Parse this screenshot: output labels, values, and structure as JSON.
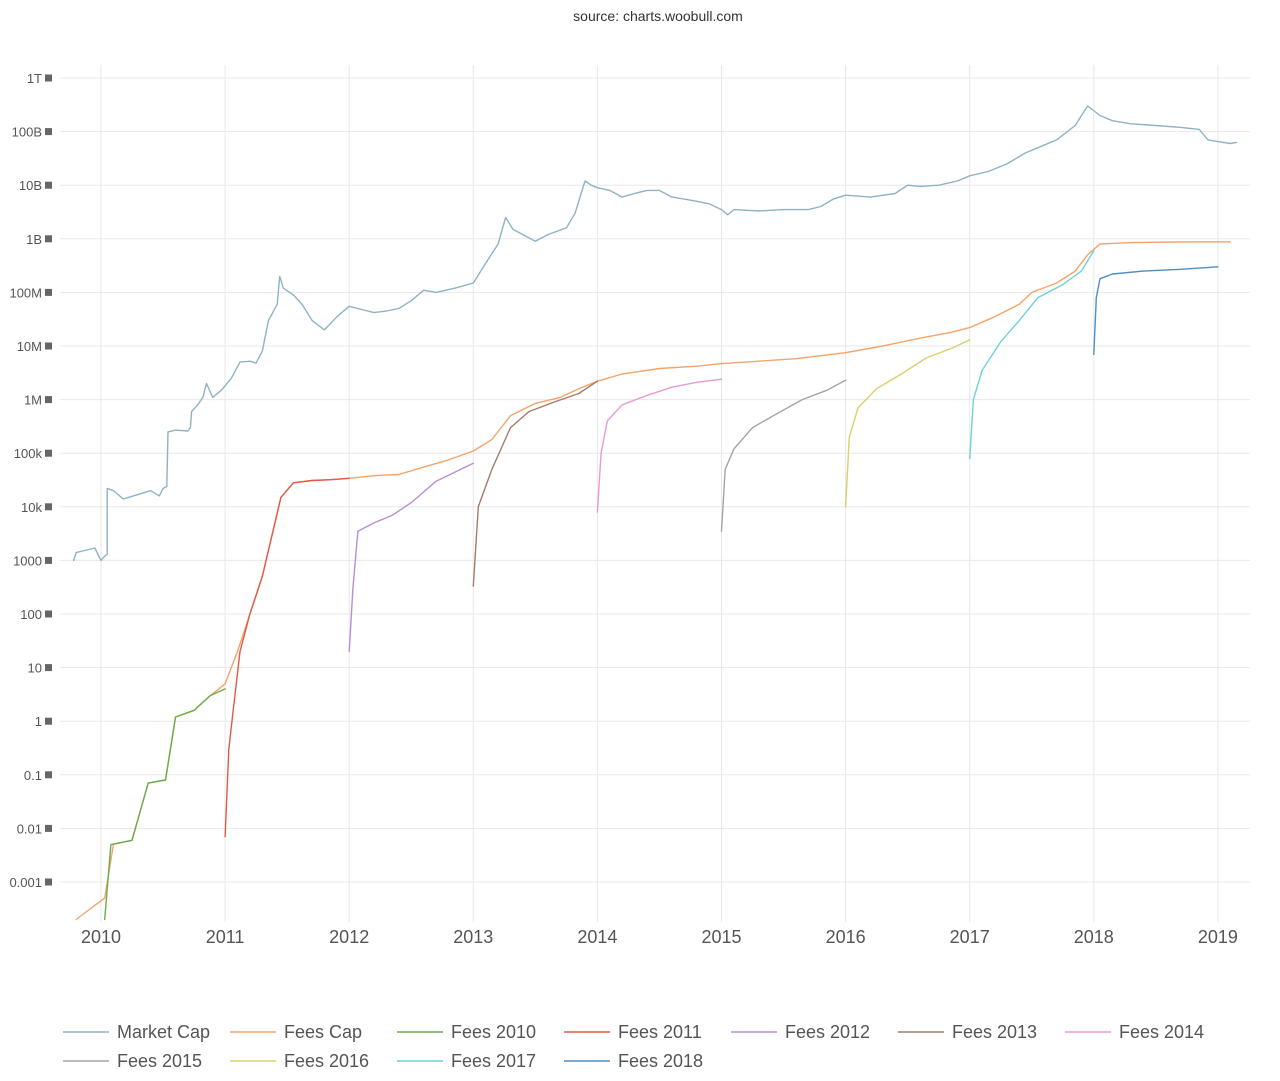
{
  "source": "source: charts.woobull.com",
  "chart_data": {
    "type": "line",
    "title": "",
    "xlabel": "",
    "ylabel": "",
    "y_scale": "log",
    "ylim": [
      0.0002,
      1000000000000
    ],
    "xlim": [
      2009.8,
      2019.2
    ],
    "grid": true,
    "legend_position": "bottom",
    "x_ticks": [
      "2010",
      "2011",
      "2012",
      "2013",
      "2014",
      "2015",
      "2016",
      "2017",
      "2018",
      "2019"
    ],
    "y_ticks": [
      {
        "label": "1T",
        "value": 1000000000000
      },
      {
        "label": "100B",
        "value": 100000000000
      },
      {
        "label": "10B",
        "value": 10000000000
      },
      {
        "label": "1B",
        "value": 1000000000
      },
      {
        "label": "100M",
        "value": 100000000
      },
      {
        "label": "10M",
        "value": 10000000
      },
      {
        "label": "1M",
        "value": 1000000
      },
      {
        "label": "100k",
        "value": 100000
      },
      {
        "label": "10k",
        "value": 10000
      },
      {
        "label": "1000",
        "value": 1000
      },
      {
        "label": "100",
        "value": 100
      },
      {
        "label": "10",
        "value": 10
      },
      {
        "label": "1",
        "value": 1
      },
      {
        "label": "0.1",
        "value": 0.1
      },
      {
        "label": "0.01",
        "value": 0.01
      },
      {
        "label": "0.001",
        "value": 0.001
      }
    ],
    "series": [
      {
        "name": "Market Cap",
        "color": "#8fb3c4",
        "points": [
          [
            2009.78,
            1000
          ],
          [
            2009.8,
            1400
          ],
          [
            2009.9,
            1600
          ],
          [
            2009.95,
            1700
          ],
          [
            2010.0,
            1000
          ],
          [
            2010.03,
            1200
          ],
          [
            2010.05,
            1300
          ],
          [
            2010.05,
            22000
          ],
          [
            2010.1,
            20000
          ],
          [
            2010.18,
            14000
          ],
          [
            2010.3,
            17000
          ],
          [
            2010.4,
            20000
          ],
          [
            2010.47,
            16000
          ],
          [
            2010.5,
            22000
          ],
          [
            2010.53,
            24000
          ],
          [
            2010.54,
            250000
          ],
          [
            2010.6,
            270000
          ],
          [
            2010.7,
            260000
          ],
          [
            2010.72,
            300000
          ],
          [
            2010.73,
            600000
          ],
          [
            2010.78,
            800000
          ],
          [
            2010.82,
            1100000
          ],
          [
            2010.85,
            2000000
          ],
          [
            2010.9,
            1100000
          ],
          [
            2010.97,
            1500000
          ],
          [
            2011.05,
            2500000
          ],
          [
            2011.12,
            5000000
          ],
          [
            2011.2,
            5200000
          ],
          [
            2011.25,
            4800000
          ],
          [
            2011.3,
            8000000
          ],
          [
            2011.35,
            30000000
          ],
          [
            2011.42,
            60000000
          ],
          [
            2011.44,
            200000000
          ],
          [
            2011.47,
            120000000
          ],
          [
            2011.55,
            90000000
          ],
          [
            2011.62,
            60000000
          ],
          [
            2011.7,
            30000000
          ],
          [
            2011.8,
            20000000
          ],
          [
            2011.9,
            35000000
          ],
          [
            2012.0,
            55000000
          ],
          [
            2012.1,
            48000000
          ],
          [
            2012.2,
            42000000
          ],
          [
            2012.3,
            45000000
          ],
          [
            2012.4,
            50000000
          ],
          [
            2012.5,
            70000000
          ],
          [
            2012.6,
            110000000
          ],
          [
            2012.7,
            100000000
          ],
          [
            2012.85,
            120000000
          ],
          [
            2013.0,
            150000000
          ],
          [
            2013.1,
            350000000
          ],
          [
            2013.2,
            800000000
          ],
          [
            2013.26,
            2500000000
          ],
          [
            2013.32,
            1500000000
          ],
          [
            2013.4,
            1200000000
          ],
          [
            2013.5,
            900000000
          ],
          [
            2013.6,
            1200000000
          ],
          [
            2013.75,
            1600000000
          ],
          [
            2013.82,
            3000000000
          ],
          [
            2013.9,
            12000000000
          ],
          [
            2013.95,
            10000000000
          ],
          [
            2014.0,
            9000000000
          ],
          [
            2014.1,
            8000000000
          ],
          [
            2014.2,
            6000000000
          ],
          [
            2014.3,
            7000000000
          ],
          [
            2014.4,
            8000000000
          ],
          [
            2014.5,
            8000000000
          ],
          [
            2014.6,
            6000000000
          ],
          [
            2014.7,
            5500000000
          ],
          [
            2014.8,
            5000000000
          ],
          [
            2014.9,
            4500000000
          ],
          [
            2015.0,
            3500000000
          ],
          [
            2015.05,
            2800000000
          ],
          [
            2015.1,
            3500000000
          ],
          [
            2015.3,
            3300000000
          ],
          [
            2015.5,
            3500000000
          ],
          [
            2015.7,
            3500000000
          ],
          [
            2015.8,
            4000000000
          ],
          [
            2015.9,
            5500000000
          ],
          [
            2016.0,
            6500000000
          ],
          [
            2016.2,
            6000000000
          ],
          [
            2016.4,
            7000000000
          ],
          [
            2016.5,
            10000000000
          ],
          [
            2016.6,
            9500000000
          ],
          [
            2016.75,
            10000000000
          ],
          [
            2016.9,
            12000000000
          ],
          [
            2017.0,
            15000000000
          ],
          [
            2017.15,
            18000000000
          ],
          [
            2017.3,
            25000000000
          ],
          [
            2017.45,
            40000000000
          ],
          [
            2017.55,
            50000000000
          ],
          [
            2017.7,
            70000000000
          ],
          [
            2017.85,
            130000000000
          ],
          [
            2017.95,
            300000000000
          ],
          [
            2018.05,
            200000000000
          ],
          [
            2018.15,
            160000000000
          ],
          [
            2018.3,
            140000000000
          ],
          [
            2018.5,
            130000000000
          ],
          [
            2018.7,
            120000000000
          ],
          [
            2018.85,
            110000000000
          ],
          [
            2018.92,
            70000000000
          ],
          [
            2019.0,
            65000000000
          ],
          [
            2019.1,
            60000000000
          ],
          [
            2019.15,
            63000000000
          ]
        ]
      },
      {
        "name": "Fees Cap",
        "color": "#f4a46a",
        "points": [
          [
            2009.8,
            0.0002
          ],
          [
            2009.9,
            0.0003
          ],
          [
            2010.03,
            0.0005
          ],
          [
            2010.1,
            0.005
          ],
          [
            2010.25,
            0.006
          ],
          [
            2010.38,
            0.07
          ],
          [
            2010.52,
            0.08
          ],
          [
            2010.6,
            1.2
          ],
          [
            2010.75,
            1.6
          ],
          [
            2010.88,
            3
          ],
          [
            2010.95,
            4
          ],
          [
            2011.0,
            5
          ],
          [
            2011.1,
            20
          ],
          [
            2011.2,
            100
          ],
          [
            2011.3,
            500
          ],
          [
            2011.45,
            15000
          ],
          [
            2011.55,
            28000
          ],
          [
            2011.7,
            31000
          ],
          [
            2011.85,
            32000
          ],
          [
            2012.0,
            34000
          ],
          [
            2012.2,
            38000
          ],
          [
            2012.4,
            40000
          ],
          [
            2012.6,
            55000
          ],
          [
            2012.8,
            75000
          ],
          [
            2013.0,
            110000
          ],
          [
            2013.15,
            180000
          ],
          [
            2013.3,
            500000
          ],
          [
            2013.5,
            850000
          ],
          [
            2013.7,
            1100000
          ],
          [
            2013.85,
            1600000
          ],
          [
            2014.0,
            2200000
          ],
          [
            2014.2,
            3000000
          ],
          [
            2014.5,
            3800000
          ],
          [
            2014.8,
            4200000
          ],
          [
            2015.0,
            4700000
          ],
          [
            2015.3,
            5200000
          ],
          [
            2015.6,
            5800000
          ],
          [
            2016.0,
            7500000
          ],
          [
            2016.3,
            10000000
          ],
          [
            2016.6,
            14000000
          ],
          [
            2016.85,
            18000000
          ],
          [
            2017.0,
            22000000
          ],
          [
            2017.2,
            35000000
          ],
          [
            2017.4,
            60000000
          ],
          [
            2017.5,
            100000000
          ],
          [
            2017.7,
            150000000
          ],
          [
            2017.85,
            250000000
          ],
          [
            2017.95,
            500000000
          ],
          [
            2018.05,
            800000000
          ],
          [
            2018.3,
            850000000
          ],
          [
            2018.6,
            870000000
          ],
          [
            2019.1,
            880000000
          ]
        ]
      },
      {
        "name": "Fees 2010",
        "color": "#6aab4e",
        "points": [
          [
            2010.03,
            0.0002
          ],
          [
            2010.08,
            0.005
          ],
          [
            2010.25,
            0.006
          ],
          [
            2010.38,
            0.07
          ],
          [
            2010.52,
            0.08
          ],
          [
            2010.58,
            0.6
          ],
          [
            2010.6,
            1.2
          ],
          [
            2010.75,
            1.6
          ],
          [
            2010.88,
            3
          ],
          [
            2011.0,
            4
          ]
        ]
      },
      {
        "name": "Fees 2011",
        "color": "#e05a46",
        "points": [
          [
            2011.0,
            0.007
          ],
          [
            2011.03,
            0.3
          ],
          [
            2011.07,
            2
          ],
          [
            2011.12,
            20
          ],
          [
            2011.2,
            100
          ],
          [
            2011.3,
            500
          ],
          [
            2011.45,
            15000
          ],
          [
            2011.55,
            28000
          ],
          [
            2011.7,
            31000
          ],
          [
            2011.85,
            32000
          ],
          [
            2012.0,
            34000
          ]
        ]
      },
      {
        "name": "Fees 2012",
        "color": "#b48fd6",
        "points": [
          [
            2012.0,
            20
          ],
          [
            2012.03,
            300
          ],
          [
            2012.07,
            3500
          ],
          [
            2012.2,
            5000
          ],
          [
            2012.35,
            7000
          ],
          [
            2012.5,
            12000
          ],
          [
            2012.7,
            30000
          ],
          [
            2013.0,
            65000
          ]
        ]
      },
      {
        "name": "Fees 2013",
        "color": "#a67b6a",
        "points": [
          [
            2013.0,
            330
          ],
          [
            2013.04,
            10000
          ],
          [
            2013.15,
            50000
          ],
          [
            2013.3,
            300000
          ],
          [
            2013.45,
            600000
          ],
          [
            2013.65,
            900000
          ],
          [
            2013.85,
            1300000
          ],
          [
            2014.0,
            2200000
          ]
        ]
      },
      {
        "name": "Fees 2014",
        "color": "#e79ad4",
        "points": [
          [
            2014.0,
            8000
          ],
          [
            2014.03,
            100000
          ],
          [
            2014.08,
            400000
          ],
          [
            2014.2,
            800000
          ],
          [
            2014.4,
            1200000
          ],
          [
            2014.6,
            1700000
          ],
          [
            2014.8,
            2100000
          ],
          [
            2015.0,
            2400000
          ]
        ]
      },
      {
        "name": "Fees 2015",
        "color": "#a5a5a5",
        "points": [
          [
            2015.0,
            3500
          ],
          [
            2015.03,
            50000
          ],
          [
            2015.1,
            120000
          ],
          [
            2015.25,
            300000
          ],
          [
            2015.45,
            550000
          ],
          [
            2015.65,
            1000000
          ],
          [
            2015.85,
            1500000
          ],
          [
            2016.0,
            2300000
          ]
        ]
      },
      {
        "name": "Fees 2016",
        "color": "#d8d06a",
        "points": [
          [
            2016.0,
            10000
          ],
          [
            2016.03,
            200000
          ],
          [
            2016.1,
            700000
          ],
          [
            2016.25,
            1600000
          ],
          [
            2016.45,
            3000000
          ],
          [
            2016.65,
            6000000
          ],
          [
            2016.85,
            9000000
          ],
          [
            2017.0,
            13000000
          ]
        ]
      },
      {
        "name": "Fees 2017",
        "color": "#6fd2d8",
        "points": [
          [
            2017.0,
            80000
          ],
          [
            2017.03,
            1000000
          ],
          [
            2017.1,
            3500000
          ],
          [
            2017.25,
            12000000
          ],
          [
            2017.4,
            30000000
          ],
          [
            2017.55,
            80000000
          ],
          [
            2017.75,
            140000000
          ],
          [
            2017.9,
            250000000
          ],
          [
            2018.0,
            600000000
          ]
        ]
      },
      {
        "name": "Fees 2018",
        "color": "#4d8ec4",
        "points": [
          [
            2018.0,
            7000000
          ],
          [
            2018.02,
            80000000
          ],
          [
            2018.05,
            180000000
          ],
          [
            2018.15,
            220000000
          ],
          [
            2018.4,
            250000000
          ],
          [
            2018.7,
            270000000
          ],
          [
            2019.0,
            300000000
          ]
        ]
      }
    ]
  }
}
